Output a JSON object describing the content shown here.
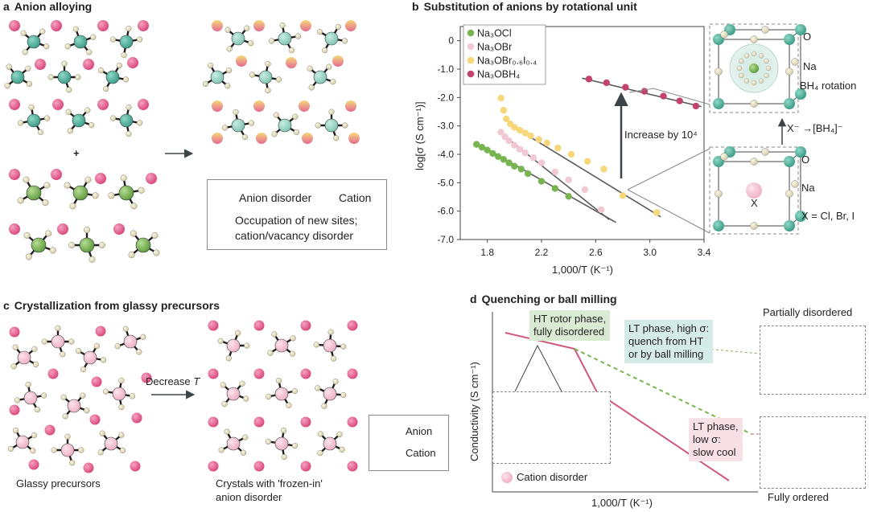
{
  "panel_a": {
    "letter": "a",
    "title": "Anion alloying",
    "plus": "+",
    "legend": {
      "anion_disorder": "Anion disorder",
      "cation": "Cation",
      "occupation": "Occupation of new sites;",
      "occupation_2": "cation/vacancy disorder"
    }
  },
  "panel_b": {
    "letter": "b",
    "title": "Substitution of anions by rotational unit",
    "increase_label": "Increase by 10⁴",
    "exchange_label": "X⁻ →[BH₄]⁻",
    "top_box": {
      "o": "O",
      "na": "Na",
      "rotation": "BH₄ rotation"
    },
    "bottom_box": {
      "o": "O",
      "na": "Na",
      "x": "X",
      "x_eq": "X = Cl, Br, I"
    }
  },
  "chart_data": {
    "type": "scatter",
    "xlabel": "1,000/T (K⁻¹)",
    "ylabel": "log[σ (S cm⁻¹)]",
    "xlim": [
      1.6,
      3.4
    ],
    "ylim": [
      -7.0,
      0.5
    ],
    "xticks": [
      "1.8",
      "2.2",
      "2.6",
      "3.0",
      "3.4"
    ],
    "yticks": [
      "0",
      "-1.0",
      "-2.0",
      "-3.0",
      "-4.0",
      "-5.0",
      "-6.0",
      "-7.0"
    ],
    "legend_position": "top-left",
    "series": [
      {
        "name": "Na₃OCl",
        "color": "#78b550",
        "x": [
          1.72,
          1.76,
          1.8,
          1.84,
          1.88,
          1.92,
          1.96,
          2.0,
          2.05,
          2.1,
          2.2,
          2.3,
          2.4
        ],
        "y": [
          -3.65,
          -3.75,
          -3.85,
          -3.97,
          -4.08,
          -4.18,
          -4.3,
          -4.42,
          -4.52,
          -4.68,
          -4.95,
          -5.2,
          -5.48
        ]
      },
      {
        "name": "Na₃OBr",
        "color": "#f2c9d2",
        "x": [
          1.9,
          1.93,
          1.96,
          2.0,
          2.04,
          2.08,
          2.14,
          2.2,
          2.3,
          2.4,
          2.52,
          2.64
        ],
        "y": [
          -3.22,
          -3.38,
          -3.52,
          -3.68,
          -3.82,
          -3.95,
          -4.12,
          -4.3,
          -4.62,
          -4.9,
          -5.24,
          -5.95
        ]
      },
      {
        "name": "Na₃OBr₀.₆I₀.₄",
        "color": "#f6d77a",
        "x": [
          1.9,
          1.92,
          1.94,
          1.97,
          2.0,
          2.04,
          2.08,
          2.12,
          2.18,
          2.24,
          2.32,
          2.42,
          2.54,
          2.66,
          2.8,
          3.05
        ],
        "y": [
          -2.02,
          -2.45,
          -2.75,
          -2.93,
          -3.05,
          -3.15,
          -3.25,
          -3.35,
          -3.48,
          -3.6,
          -3.78,
          -4.0,
          -4.25,
          -4.52,
          -5.45,
          -6.05
        ]
      },
      {
        "name": "Na₃OBH₄",
        "color": "#c4436e",
        "x": [
          2.55,
          2.68,
          2.82,
          2.96,
          3.1,
          3.22,
          3.34
        ],
        "y": [
          -1.35,
          -1.48,
          -1.64,
          -1.78,
          -1.95,
          -2.12,
          -2.3
        ]
      }
    ]
  },
  "panel_c": {
    "letter": "c",
    "title": "Crystallization from glassy precursors",
    "decrease": "Decrease ",
    "decrease_t": "T",
    "glassy": "Glassy precursors",
    "crystals_1": "Crystals with 'frozen-in'",
    "crystals_2": "anion disorder",
    "legend": {
      "anion": "Anion",
      "cation": "Cation"
    }
  },
  "panel_d": {
    "letter": "d",
    "title": "Quenching or ball milling",
    "ylabel": "Conductivity (S cm⁻¹)",
    "xlabel": "1,000/T (K⁻¹)",
    "ht_1": "HT rotor phase,",
    "ht_2": "fully disordered",
    "lt_high_1": "LT phase, high σ:",
    "lt_high_2": "quench from HT",
    "lt_high_3": "or by ball milling",
    "lt_low_1": "LT phase,",
    "lt_low_2": "low σ:",
    "lt_low_3": "slow cool",
    "partially": "Partially disordered",
    "fully": "Fully ordered",
    "cation_disorder": "Cation disorder"
  },
  "colors": {
    "teal": "#4fae9a",
    "green": "#78b550",
    "pink": "#e05a8a",
    "light_pink": "#f6c6d3",
    "line": "#d0587a"
  }
}
